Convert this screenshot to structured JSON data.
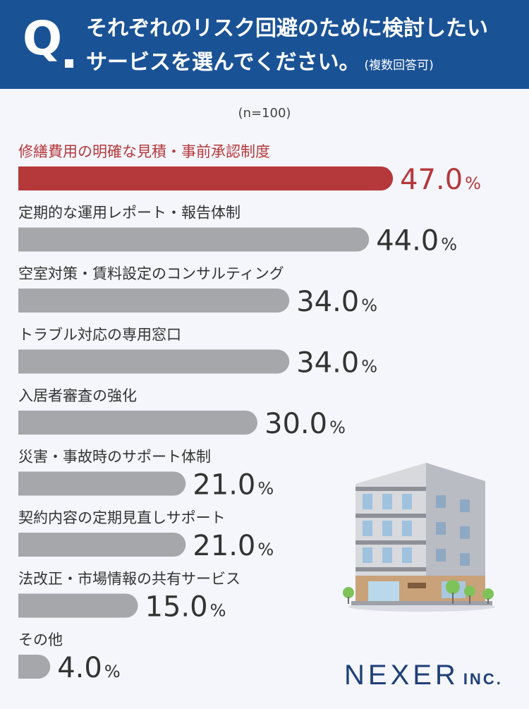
{
  "header": {
    "q_label": "Q",
    "line1": "それぞれのリスク回避のために検討したい",
    "line2": "サービスを選んでください。",
    "note": "(複数回答可)"
  },
  "sample_size": "(n=100)",
  "logo": {
    "name": "NEXER",
    "suffix": "INC."
  },
  "colors": {
    "header": "#1a5296",
    "highlight": "#b5383b",
    "bar": "#a5a7ab",
    "text": "#333333",
    "background": "#f4f6fb"
  },
  "chart_data": {
    "type": "bar",
    "orientation": "horizontal",
    "categories": [
      "修繕費用の明確な見積・事前承認制度",
      "定期的な運用レポート・報告体制",
      "空室対策・賃料設定のコンサルティング",
      "トラブル対応の専用窓口",
      "入居者審査の強化",
      "災害・事故時のサポート体制",
      "契約内容の定期見直しサポート",
      "法改正・市場情報の共有サービス",
      "その他"
    ],
    "values": [
      47.0,
      44.0,
      34.0,
      34.0,
      30.0,
      21.0,
      21.0,
      15.0,
      4.0
    ],
    "unit": "%",
    "highlight_index": 0,
    "xlim": [
      0,
      100
    ]
  }
}
